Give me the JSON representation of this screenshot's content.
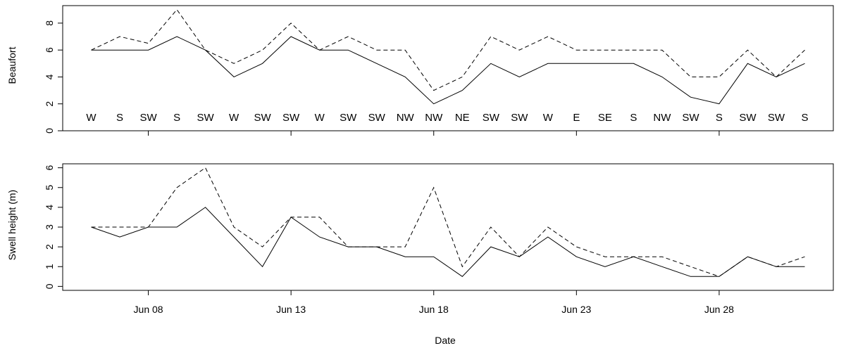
{
  "chart_data": [
    {
      "type": "line",
      "ylabel": "Beaufort",
      "ylim": [
        0,
        9.3
      ],
      "yticks": [
        0,
        2,
        4,
        6,
        8
      ],
      "x": [
        6,
        7,
        8,
        9,
        10,
        11,
        12,
        13,
        14,
        15,
        16,
        17,
        18,
        19,
        20,
        21,
        22,
        23,
        24,
        25,
        26,
        27,
        28,
        29,
        30,
        31
      ],
      "xlim": [
        5,
        32
      ],
      "series": [
        {
          "style": "solid",
          "values": [
            6,
            6,
            6,
            7,
            6,
            4,
            5,
            7,
            6,
            6,
            5,
            4,
            2,
            3,
            5,
            4,
            5,
            5,
            5,
            5,
            4,
            2.5,
            2,
            5,
            4,
            5
          ]
        },
        {
          "style": "dashed",
          "values": [
            6,
            7,
            6.5,
            9,
            6,
            5,
            6,
            8,
            6,
            7,
            6,
            6,
            3,
            4,
            7,
            6,
            7,
            6,
            6,
            6,
            6,
            4,
            4,
            6,
            4,
            6
          ]
        }
      ],
      "annotations": {
        "y": 1,
        "labels": [
          "W",
          "S",
          "SW",
          "S",
          "SW",
          "W",
          "SW",
          "SW",
          "W",
          "SW",
          "SW",
          "NW",
          "NW",
          "NE",
          "SW",
          "SW",
          "W",
          "E",
          "SE",
          "S",
          "NW",
          "SW",
          "S",
          "SW",
          "SW",
          "S"
        ]
      }
    },
    {
      "type": "line",
      "ylabel": "Swell height (m)",
      "xlabel": "Date",
      "ylim": [
        -0.2,
        6.2
      ],
      "yticks": [
        0,
        1,
        2,
        3,
        4,
        5,
        6
      ],
      "x": [
        6,
        7,
        8,
        9,
        10,
        11,
        12,
        13,
        14,
        15,
        16,
        17,
        18,
        19,
        20,
        21,
        22,
        23,
        24,
        25,
        26,
        27,
        28,
        29,
        30,
        31
      ],
      "xlim": [
        5,
        32
      ],
      "xticks": [
        8,
        13,
        18,
        23,
        28
      ],
      "xticklabels": [
        "Jun 08",
        "Jun 13",
        "Jun 18",
        "Jun 23",
        "Jun 28"
      ],
      "series": [
        {
          "style": "solid",
          "values": [
            3,
            2.5,
            3,
            3,
            4,
            2.5,
            1,
            3.5,
            2.5,
            2,
            2,
            1.5,
            1.5,
            0.5,
            2,
            1.5,
            2.5,
            1.5,
            1,
            1.5,
            1,
            0.5,
            0.5,
            1.5,
            1,
            1
          ]
        },
        {
          "style": "dashed",
          "values": [
            3,
            3,
            3,
            5,
            6,
            3,
            2,
            3.5,
            3.5,
            2,
            2,
            2,
            5,
            1,
            3,
            1.5,
            3,
            2,
            1.5,
            1.5,
            1.5,
            1,
            0.5,
            1.5,
            1,
            1.5
          ]
        }
      ]
    }
  ]
}
